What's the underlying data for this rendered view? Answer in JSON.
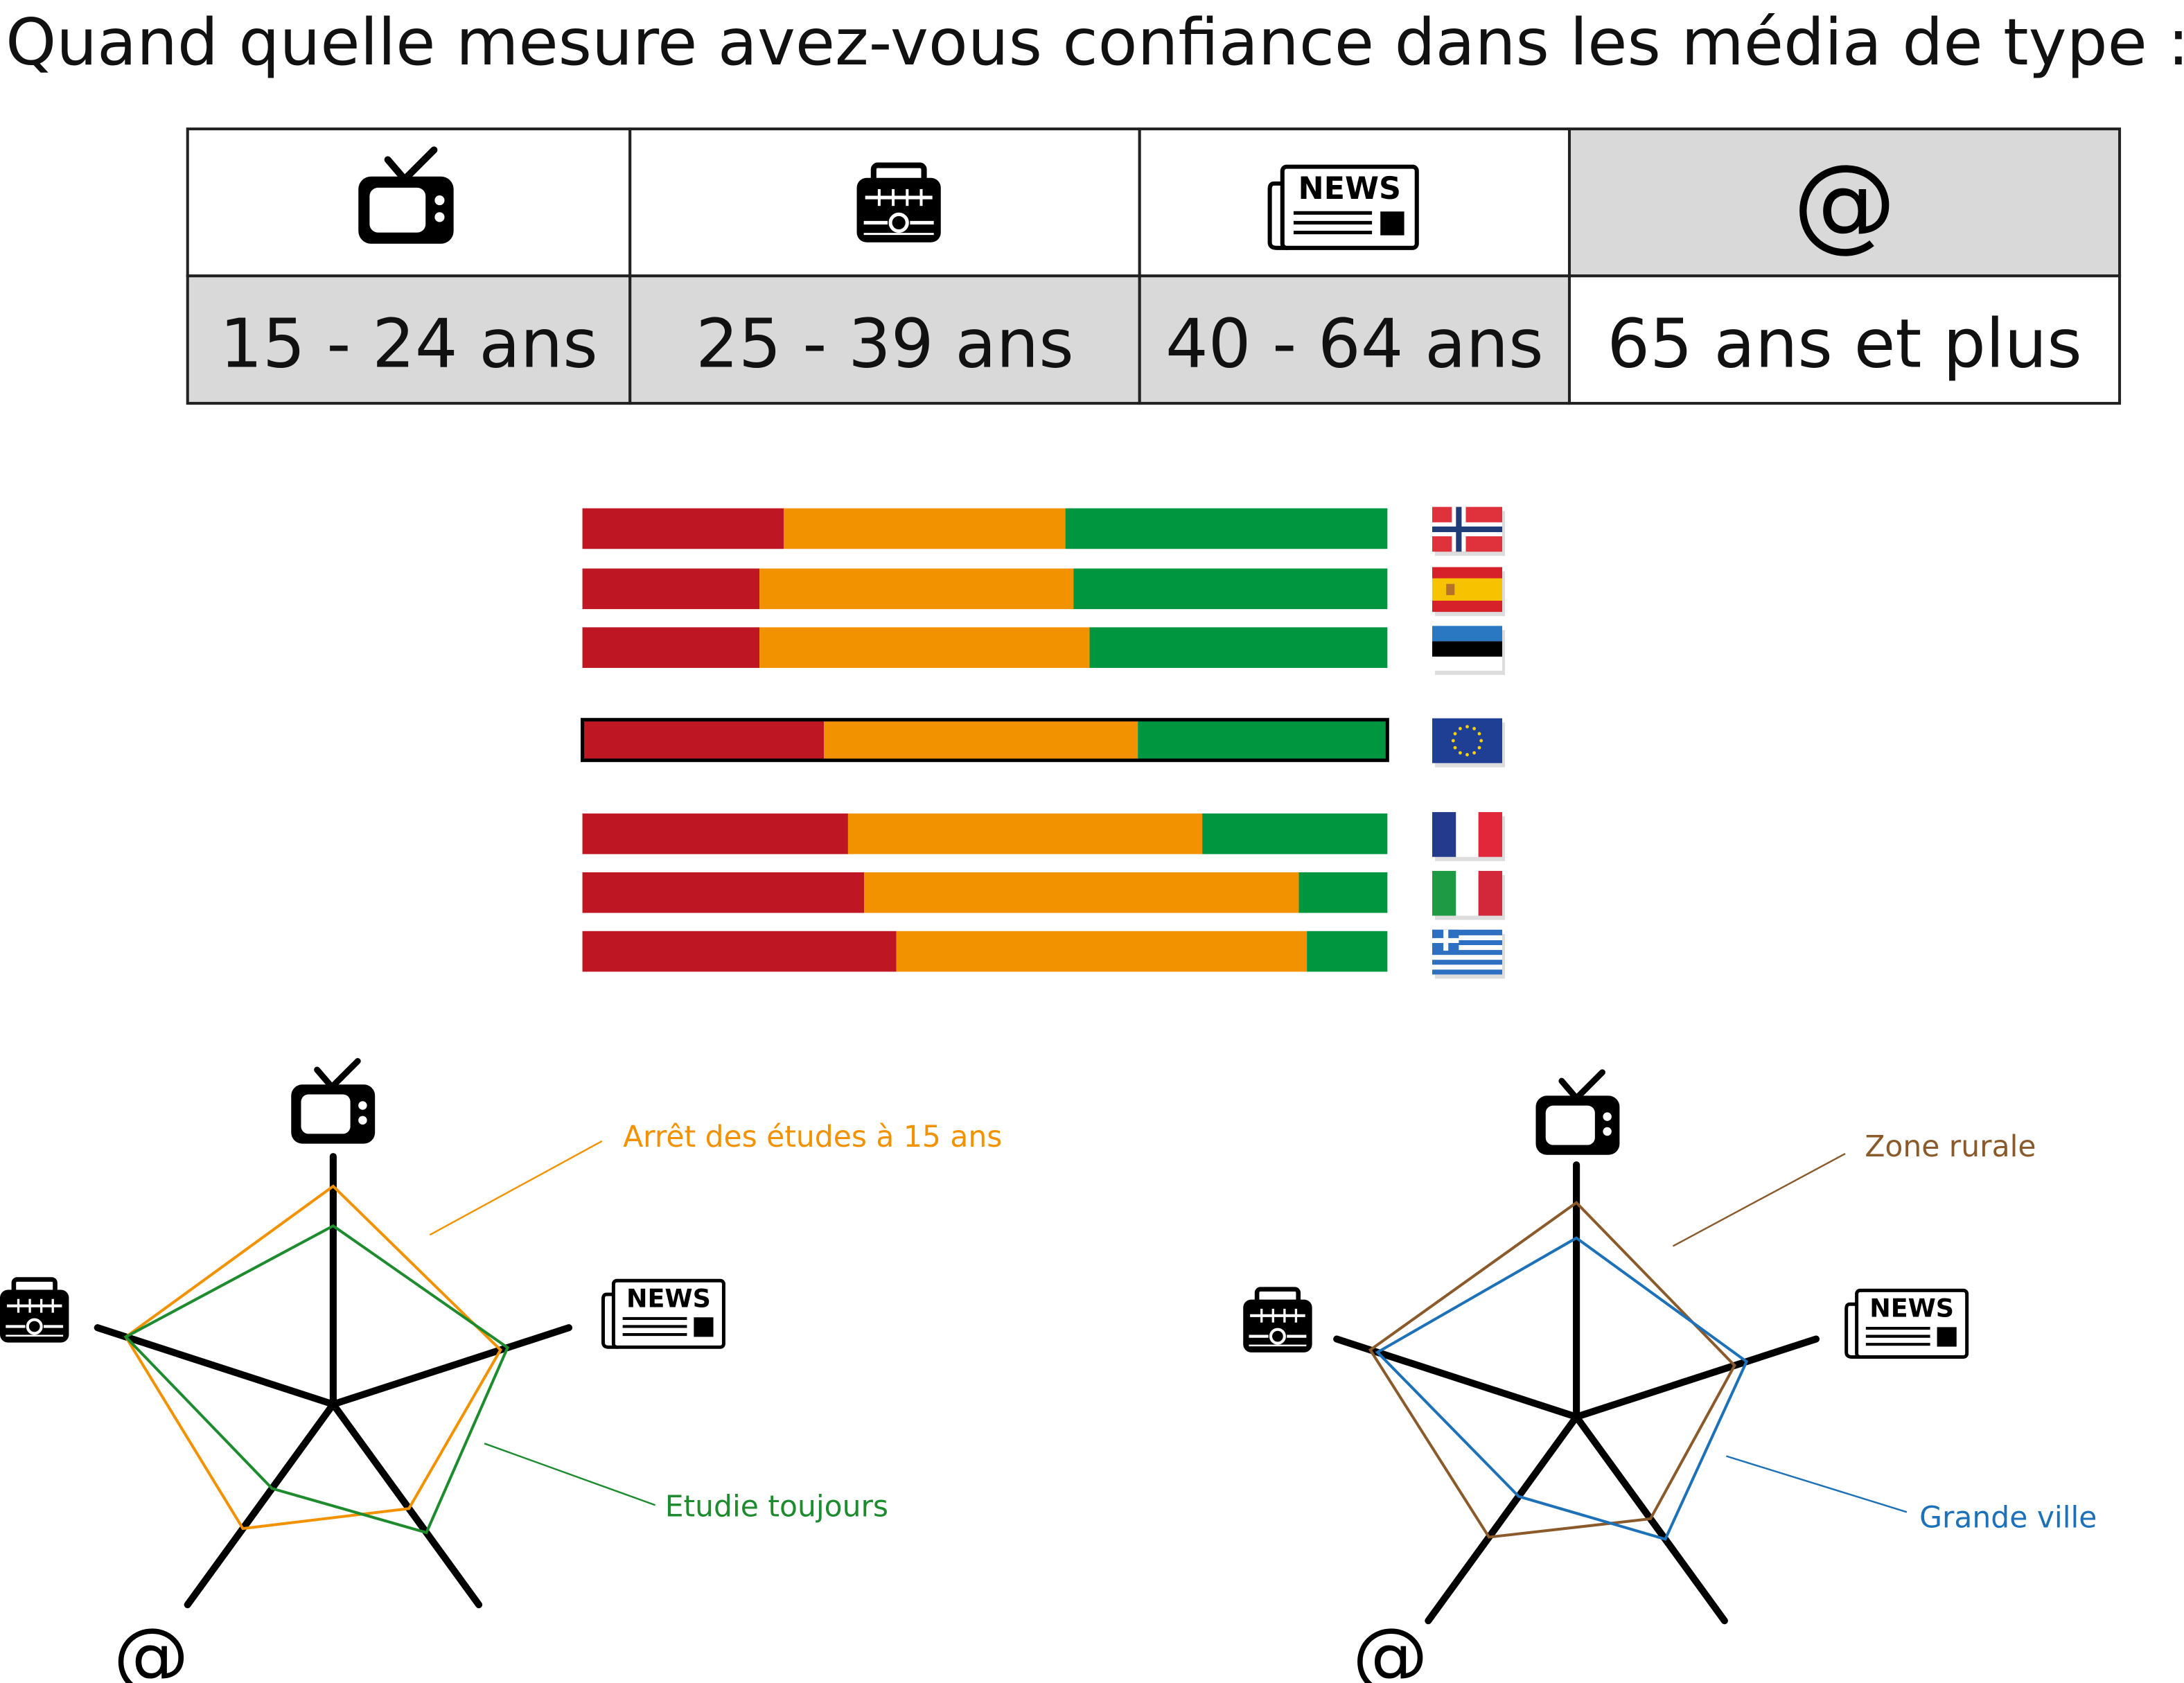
{
  "title": "Quand quelle mesure avez-vous confiance dans les média de type :",
  "icons": {
    "news": "NEWS"
  },
  "table": {
    "header": [
      null,
      null,
      null,
      "@"
    ],
    "row": [
      "15 - 24 ans",
      "25 - 39 ans",
      "40 - 64 ans",
      "65 ans et plus"
    ]
  },
  "chart_data": [
    {
      "type": "bar",
      "stacked": true,
      "orientation": "horizontal",
      "xlim": [
        0,
        100
      ],
      "series": [
        {
          "color": "#be1622",
          "values": [
            25,
            22,
            22,
            30,
            33,
            35,
            39
          ]
        },
        {
          "color": "#f39200",
          "values": [
            35,
            39,
            41,
            39,
            44,
            54,
            51
          ]
        },
        {
          "color": "#009640",
          "values": [
            40,
            39,
            37,
            31,
            23,
            11,
            10
          ]
        }
      ]
    },
    {
      "type": "radar",
      "rlim": [
        0,
        100
      ],
      "axes": [
        null,
        null,
        null,
        "@",
        null
      ],
      "series": [
        {
          "name": "Arrêt des études à 15 ans",
          "color": "#f39200",
          "values": [
            88,
            71,
            52,
            62,
            88
          ]
        },
        {
          "name": "Etudie toujours",
          "color": "#1e8c2e",
          "values": [
            72,
            74,
            64,
            42,
            88
          ]
        }
      ]
    },
    {
      "type": "radar",
      "rlim": [
        0,
        100
      ],
      "axes": [
        null,
        null,
        null,
        "@",
        null
      ],
      "series": [
        {
          "name": "Zone rurale",
          "color": "#8b5a2b",
          "values": [
            85,
            66,
            50,
            59,
            86
          ]
        },
        {
          "name": "Grande ville",
          "color": "#1d71b8",
          "values": [
            71,
            71,
            60,
            39,
            83
          ]
        }
      ]
    }
  ]
}
